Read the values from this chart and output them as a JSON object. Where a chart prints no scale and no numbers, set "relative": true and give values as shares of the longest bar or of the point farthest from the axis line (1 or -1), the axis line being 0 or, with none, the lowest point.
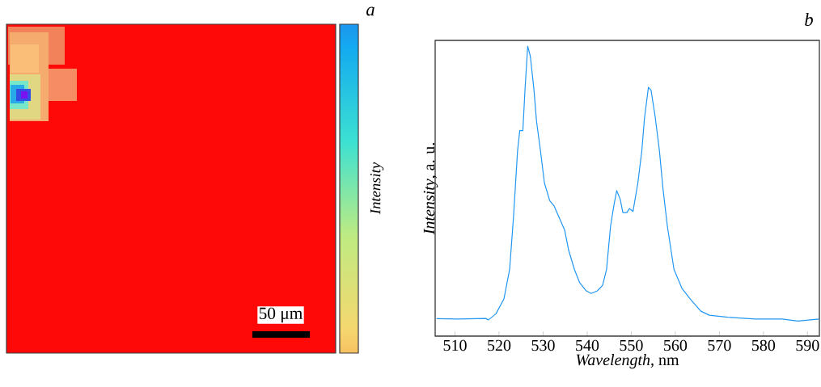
{
  "chart_data": [
    {
      "type": "other",
      "clabel": "Intensity",
      "annotations": [
        "a",
        "50 μm"
      ]
    },
    {
      "type": "line",
      "relative": true,
      "xlabel": "*Wavelength*, nm",
      "ylabel": "*Intensity*, a. u.",
      "annotations": [
        "b"
      ],
      "xlim": [
        505.5,
        592.7
      ],
      "xticks": [
        510,
        520,
        530,
        540,
        550,
        560,
        570,
        580,
        590
      ],
      "x": [
        505.8,
        510.7,
        516.9,
        517.6,
        519.3,
        521.1,
        522.4,
        523.3,
        524.2,
        524.7,
        525.4,
        525.9,
        526.5,
        527.1,
        527.9,
        528.5,
        529.4,
        530.3,
        531.5,
        532.5,
        533.7,
        534.9,
        535.8,
        537.1,
        538.3,
        539.8,
        540.9,
        542.3,
        543.5,
        544.4,
        545.3,
        546.1,
        546.7,
        547.5,
        548.1,
        549.0,
        549.6,
        550.4,
        551.5,
        552.4,
        553.0,
        553.9,
        554.5,
        555.4,
        556.4,
        557.2,
        558.2,
        559.7,
        561.5,
        563.4,
        565.8,
        567.7,
        571.9,
        578.1,
        584.2,
        587.8,
        592.6
      ],
      "series": [
        {
          "color": "#2196f3",
          "values": [
            0.06,
            0.059,
            0.061,
            0.056,
            0.077,
            0.128,
            0.23,
            0.416,
            0.639,
            0.709,
            0.709,
            0.853,
            1.0,
            0.965,
            0.853,
            0.742,
            0.639,
            0.528,
            0.467,
            0.449,
            0.407,
            0.365,
            0.296,
            0.23,
            0.184,
            0.156,
            0.147,
            0.156,
            0.175,
            0.23,
            0.379,
            0.454,
            0.502,
            0.472,
            0.426,
            0.426,
            0.44,
            0.43,
            0.528,
            0.639,
            0.751,
            0.858,
            0.848,
            0.76,
            0.639,
            0.509,
            0.379,
            0.23,
            0.165,
            0.128,
            0.086,
            0.072,
            0.065,
            0.059,
            0.059,
            0.052,
            0.059
          ]
        }
      ]
    }
  ]
}
